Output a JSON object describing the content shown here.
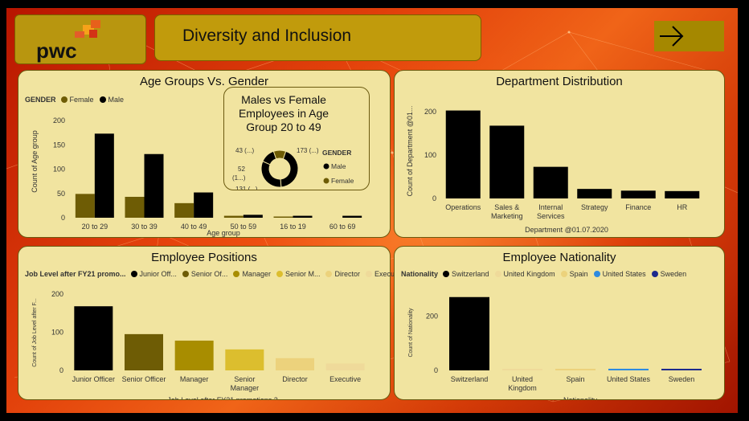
{
  "header": {
    "logo_text": "pwc",
    "title": "Diversity and Inclusion",
    "nav_icon": "arrow-right-icon"
  },
  "colors": {
    "background_red": "#d23a07",
    "panel": "#f1e4a0",
    "header_gold": "#c19b0c",
    "black": "#000000",
    "olive": "#6e5c05",
    "dark_gold": "#a88d00",
    "gold": "#dcbe2e",
    "light_gold": "#ecd27c",
    "pale_gold": "#efda9a",
    "blue": "#2e8be0",
    "navy": "#1d2a8c"
  },
  "age_gender": {
    "title": "Age Groups Vs. Gender",
    "legend_title": "GENDER",
    "legend": [
      "Female",
      "Male"
    ],
    "ylabel": "Count of Age group",
    "xlabel": "Age group"
  },
  "donut": {
    "title": "Males vs Female Employees in Age Group 20 to 49",
    "legend_title": "GENDER",
    "legend": [
      "Male",
      "Female"
    ],
    "labels": [
      "43 (...)",
      "173 (...)",
      "52 (1...)",
      "131 (...)"
    ]
  },
  "department": {
    "title": "Department Distribution",
    "ylabel": "Count of Department @01...",
    "xlabel": "Department @01.07.2020"
  },
  "positions": {
    "title": "Employee Positions",
    "legend_title": "Job Level after FY21 promo...",
    "legend": [
      "Junior Off...",
      "Senior Of...",
      "Manager",
      "Senior M...",
      "Director",
      "Executive"
    ],
    "ylabel": "Count of Job Level after F...",
    "xlabel": "Job Level after FY21 promotions.2"
  },
  "nationality": {
    "title": "Employee Nationality",
    "legend_title": "Nationality",
    "legend": [
      "Switzerland",
      "United Kingdom",
      "Spain",
      "United States",
      "Sweden"
    ],
    "ylabel": "Count of Nationality",
    "xlabel": "Nationality"
  },
  "chart_data": [
    {
      "type": "bar",
      "title": "Age Groups Vs. Gender",
      "categories": [
        "20 to 29",
        "30 to 39",
        "40 to 49",
        "50 to 59",
        "16 to 19",
        "60 to 69"
      ],
      "series": [
        {
          "name": "Female",
          "values": [
            49,
            43,
            30,
            4,
            1,
            0
          ]
        },
        {
          "name": "Male",
          "values": [
            173,
            131,
            52,
            6,
            4,
            4
          ]
        }
      ],
      "xlabel": "Age group",
      "ylabel": "Count of Age group",
      "yticks": [
        0,
        50,
        100,
        150,
        200
      ],
      "ylim": [
        0,
        200
      ],
      "legend": "top-left"
    },
    {
      "type": "pie",
      "title": "Males vs Female Employees in Age Group 20 to 49",
      "categories": [
        "Male 20 to 29",
        "Male 30 to 39",
        "Male 40 to 49",
        "Female 30 to 39"
      ],
      "values": [
        173,
        131,
        52,
        43
      ]
    },
    {
      "type": "bar",
      "title": "Department Distribution",
      "categories": [
        "Operations",
        "Sales & Marketing",
        "Internal Services",
        "Strategy",
        "Finance",
        "HR"
      ],
      "values": [
        203,
        168,
        73,
        22,
        18,
        17
      ],
      "xlabel": "Department @01.07.2020",
      "ylabel": "Count of Department @01...",
      "yticks": [
        0,
        100,
        200
      ],
      "ylim": [
        0,
        230
      ]
    },
    {
      "type": "bar",
      "title": "Employee Positions",
      "categories": [
        "Junior Officer",
        "Senior Officer",
        "Manager",
        "Senior Manager",
        "Director",
        "Executive"
      ],
      "values": [
        168,
        95,
        78,
        55,
        32,
        18
      ],
      "xlabel": "Job Level after FY21 promotions.2",
      "ylabel": "Count of Job Level after F...",
      "yticks": [
        0,
        100,
        200
      ],
      "ylim": [
        0,
        200
      ]
    },
    {
      "type": "bar",
      "title": "Employee Nationality",
      "categories": [
        "Switzerland",
        "United Kingdom",
        "Spain",
        "United States",
        "Sweden"
      ],
      "values": [
        270,
        4,
        3,
        6,
        3
      ],
      "xlabel": "Nationality",
      "ylabel": "Count of Nationality",
      "yticks": [
        0,
        200
      ],
      "ylim": [
        0,
        290
      ]
    }
  ]
}
